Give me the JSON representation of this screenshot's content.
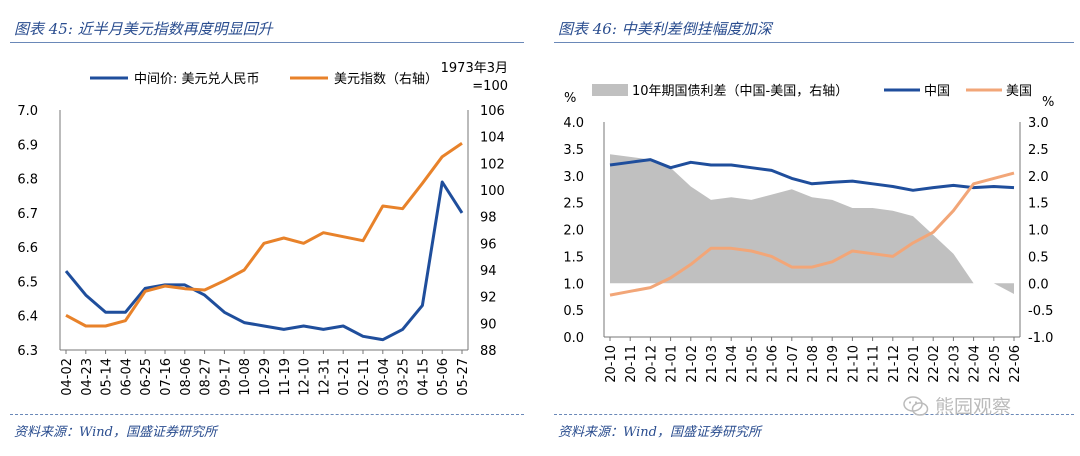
{
  "left_panel": {
    "title": "图表 45: 近半月美元指数再度明显回升",
    "source": "资料来源：Wind，国盛证券研究所"
  },
  "right_panel": {
    "title": "图表 46: 中美利差倒挂幅度加深",
    "source": "资料来源：Wind，国盛证券研究所"
  },
  "watermark": "熊园观察",
  "colors": {
    "blue": "#1f4e9c",
    "orange": "#e8822a",
    "grey": "#c0c0c0",
    "light_orange": "#f2a678",
    "title_blue": "#2a4d8f"
  },
  "chart_data": [
    {
      "type": "line",
      "title": "近半月美元指数再度明显回升",
      "xlabel": "",
      "ylabel": "",
      "x_tick_labels": [
        "04-02",
        "04-23",
        "05-14",
        "06-04",
        "06-25",
        "07-16",
        "08-06",
        "08-27",
        "09-17",
        "10-08",
        "10-29",
        "11-19",
        "12-10",
        "12-31",
        "01-21",
        "02-11",
        "03-04",
        "03-25",
        "04-15",
        "05-06",
        "05-27"
      ],
      "y_left": {
        "range": [
          6.3,
          7.0
        ],
        "ticks": [
          6.3,
          6.4,
          6.5,
          6.6,
          6.7,
          6.8,
          6.9,
          7.0
        ]
      },
      "y_right": {
        "range": [
          88,
          106
        ],
        "ticks": [
          88,
          90,
          92,
          94,
          96,
          98,
          100,
          102,
          104,
          106
        ],
        "note": "1973年3月=100"
      },
      "legend": [
        "中间价: 美元兑人民币",
        "美元指数（右轴）"
      ],
      "series": [
        {
          "name": "中间价: 美元兑人民币",
          "axis": "left",
          "color": "#1f4e9c",
          "x": [
            0,
            1,
            2,
            3,
            4,
            5,
            6,
            7,
            8,
            9,
            10,
            11,
            12,
            13,
            14,
            15,
            16,
            17,
            18,
            19,
            20
          ],
          "values": [
            6.53,
            6.46,
            6.41,
            6.41,
            6.48,
            6.49,
            6.49,
            6.46,
            6.41,
            6.38,
            6.37,
            6.36,
            6.37,
            6.36,
            6.37,
            6.34,
            6.33,
            6.36,
            6.43,
            6.79,
            6.7
          ]
        },
        {
          "name": "美元指数（右轴）",
          "axis": "right",
          "color": "#e8822a",
          "x": [
            0,
            1,
            2,
            3,
            4,
            5,
            6,
            7,
            8,
            9,
            10,
            11,
            12,
            13,
            14,
            15,
            16,
            17,
            18,
            19,
            20
          ],
          "values": [
            90.6,
            89.8,
            89.8,
            90.2,
            92.4,
            92.8,
            92.6,
            92.5,
            93.2,
            94.0,
            96.0,
            96.4,
            96.0,
            96.8,
            96.5,
            96.2,
            98.8,
            98.6,
            100.5,
            102.5,
            103.5
          ]
        }
      ]
    },
    {
      "type": "line",
      "title": "中美利差倒挂幅度加深",
      "xlabel": "",
      "ylabel_left": "%",
      "ylabel_right": "%",
      "x_tick_labels": [
        "20-10",
        "20-11",
        "20-12",
        "21-01",
        "21-02",
        "21-03",
        "21-04",
        "21-05",
        "21-06",
        "21-07",
        "21-08",
        "21-09",
        "21-10",
        "21-11",
        "21-12",
        "22-01",
        "22-02",
        "22-03",
        "22-04",
        "22-05",
        "22-06"
      ],
      "y_left": {
        "range": [
          0.0,
          4.0
        ],
        "ticks": [
          0.0,
          0.5,
          1.0,
          1.5,
          2.0,
          2.5,
          3.0,
          3.5,
          4.0
        ]
      },
      "y_right": {
        "range": [
          -1.0,
          3.0
        ],
        "ticks": [
          -1.0,
          -0.5,
          0.0,
          0.5,
          1.0,
          1.5,
          2.0,
          2.5,
          3.0
        ]
      },
      "legend": [
        "10年期国债利差（中国-美国，右轴）",
        "中国",
        "美国"
      ],
      "series": [
        {
          "name": "10年期国债利差（中国-美国，右轴）",
          "axis": "right",
          "kind": "area",
          "color": "#c0c0c0",
          "x": [
            0,
            1,
            2,
            3,
            4,
            5,
            6,
            7,
            8,
            9,
            10,
            11,
            12,
            13,
            14,
            15,
            16,
            17,
            18,
            19,
            20
          ],
          "values": [
            2.4,
            2.35,
            2.3,
            2.15,
            1.8,
            1.55,
            1.6,
            1.55,
            1.65,
            1.75,
            1.6,
            1.55,
            1.4,
            1.4,
            1.35,
            1.25,
            0.9,
            0.55,
            0.0,
            0.0,
            -0.2
          ]
        },
        {
          "name": "中国",
          "axis": "left",
          "color": "#1f4e9c",
          "x": [
            0,
            1,
            2,
            3,
            4,
            5,
            6,
            7,
            8,
            9,
            10,
            11,
            12,
            13,
            14,
            15,
            16,
            17,
            18,
            19,
            20
          ],
          "values": [
            3.2,
            3.25,
            3.3,
            3.15,
            3.25,
            3.2,
            3.2,
            3.15,
            3.1,
            2.95,
            2.85,
            2.88,
            2.9,
            2.85,
            2.8,
            2.73,
            2.78,
            2.82,
            2.78,
            2.8,
            2.78
          ]
        },
        {
          "name": "美国",
          "axis": "left",
          "color": "#f2a678",
          "x": [
            0,
            1,
            2,
            3,
            4,
            5,
            6,
            7,
            8,
            9,
            10,
            11,
            12,
            13,
            14,
            15,
            16,
            17,
            18,
            19,
            20
          ],
          "values": [
            0.78,
            0.85,
            0.92,
            1.1,
            1.35,
            1.65,
            1.65,
            1.6,
            1.5,
            1.3,
            1.3,
            1.4,
            1.6,
            1.55,
            1.5,
            1.75,
            1.95,
            2.35,
            2.85,
            2.95,
            3.05
          ]
        }
      ]
    }
  ]
}
